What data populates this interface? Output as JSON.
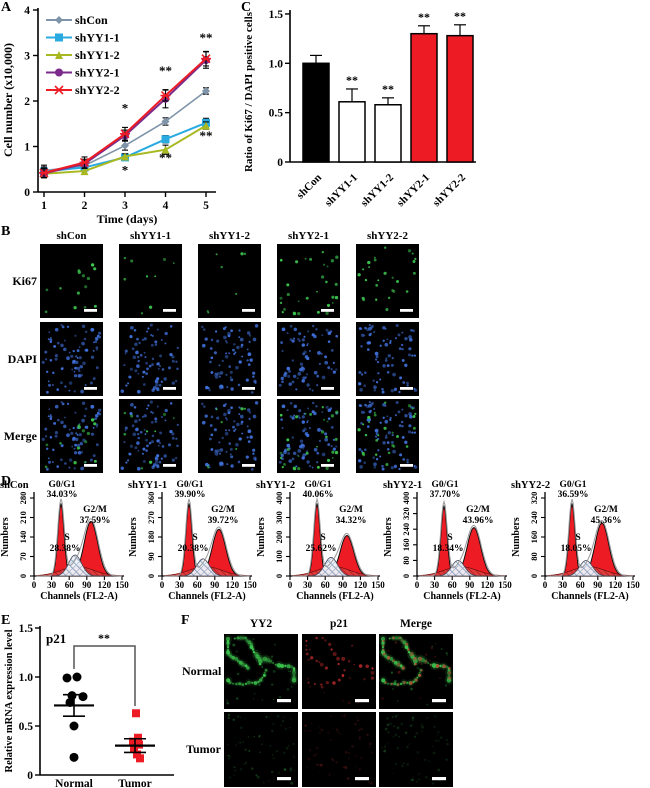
{
  "panels": {
    "a": {
      "letter": "A"
    },
    "b": {
      "letter": "B"
    },
    "c": {
      "letter": "C"
    },
    "d": {
      "letter": "D"
    },
    "e": {
      "letter": "E"
    },
    "f": {
      "letter": "F"
    }
  },
  "chart_data": [
    {
      "id": "A",
      "type": "line",
      "xlabel": "Time (days)",
      "ylabel": "Cell number (x10,000)",
      "x": [
        1,
        2,
        3,
        4,
        5
      ],
      "ylim": [
        0,
        4
      ],
      "yticks": [
        0,
        1,
        2,
        3,
        4
      ],
      "legend_position": "top-left",
      "series": [
        {
          "name": "shCon",
          "color": "#7f94a8",
          "marker": "diamond",
          "values": [
            0.47,
            0.58,
            1.02,
            1.55,
            2.22
          ],
          "errors": [
            0.12,
            0.1,
            0.1,
            0.08,
            0.07
          ]
        },
        {
          "name": "shYY1-1",
          "color": "#29abe2",
          "marker": "square",
          "values": [
            0.45,
            0.54,
            0.76,
            1.16,
            1.52
          ],
          "errors": [
            0.1,
            0.08,
            0.06,
            0.08,
            0.1
          ]
        },
        {
          "name": "shYY1-2",
          "color": "#a8b820",
          "marker": "triangle",
          "values": [
            0.4,
            0.46,
            0.78,
            0.93,
            1.46
          ],
          "errors": [
            0.08,
            0.06,
            0.06,
            0.1,
            0.08
          ]
        },
        {
          "name": "shYY2-1",
          "color": "#7b2a8b",
          "marker": "circle",
          "values": [
            0.41,
            0.62,
            1.24,
            2.05,
            2.9
          ],
          "errors": [
            0.1,
            0.1,
            0.12,
            0.2,
            0.18
          ]
        },
        {
          "name": "shYY2-2",
          "color": "#ed1c24",
          "marker": "asterisk",
          "values": [
            0.42,
            0.65,
            1.28,
            2.12,
            2.93
          ],
          "errors": [
            0.1,
            0.12,
            0.14,
            0.12,
            0.16
          ]
        }
      ],
      "significance": [
        {
          "x": 3,
          "y": 1.75,
          "text": "*"
        },
        {
          "x": 4,
          "y": 2.57,
          "text": "**"
        },
        {
          "x": 5,
          "y": 3.3,
          "text": "**"
        },
        {
          "x": 3,
          "y": 0.38,
          "text": "*"
        },
        {
          "x": 4,
          "y": 0.66,
          "text": "**"
        },
        {
          "x": 5,
          "y": 1.14,
          "text": "**"
        }
      ]
    },
    {
      "id": "C",
      "type": "bar",
      "ylabel": "Ratio of Ki67 / DAPI positive cells",
      "ylim": [
        0,
        1.5
      ],
      "ytick_labels": [
        "0",
        "0.5",
        "1.0",
        "1.5"
      ],
      "yticks": [
        0,
        0.5,
        1.0,
        1.5
      ],
      "categories": [
        "shCon",
        "shYY1-1",
        "shYY1-2",
        "shYY2-1",
        "shYY2-2"
      ],
      "values": [
        1.0,
        0.61,
        0.58,
        1.3,
        1.28
      ],
      "errors": [
        0.08,
        0.13,
        0.07,
        0.08,
        0.11
      ],
      "bar_colors": [
        "#000000",
        "#ffffff",
        "#ffffff",
        "#ed1c24",
        "#ed1c24"
      ],
      "significance": [
        "",
        "**",
        "**",
        "**",
        "**"
      ]
    },
    {
      "id": "D",
      "type": "flow-histograms",
      "xlabel": "Channels (FL2-A)",
      "ylabel": "Numbers",
      "xticks": [
        0,
        30,
        60,
        90,
        120,
        150
      ],
      "phase_labels": {
        "g0g1": "G0/G1",
        "g2m": "G2/M",
        "s": "S"
      },
      "fill_color": "#ed1c24",
      "panels": [
        {
          "name": "shCon",
          "g0g1_pct": "34.03%",
          "g2m_pct": "37.59%",
          "s_pct": "28.38%",
          "yticks": [
            0,
            70,
            140,
            210,
            280
          ],
          "peak1": 0.93,
          "peak2": 0.7,
          "s_height": 0.27
        },
        {
          "name": "shYY1-1",
          "g0g1_pct": "39.90%",
          "g2m_pct": "39.72%",
          "s_pct": "20.38%",
          "yticks": [
            0,
            90,
            180,
            270,
            360
          ],
          "peak1": 0.93,
          "peak2": 0.6,
          "s_height": 0.22
        },
        {
          "name": "shYY1-2",
          "g0g1_pct": "40.06%",
          "g2m_pct": "34.32%",
          "s_pct": "25.62%",
          "yticks": [
            0,
            100,
            200,
            300,
            400
          ],
          "peak1": 0.93,
          "peak2": 0.52,
          "s_height": 0.24
        },
        {
          "name": "shYY2-1",
          "g0g1_pct": "37.70%",
          "g2m_pct": "43.96%",
          "s_pct": "18.34%",
          "yticks": [
            0,
            80,
            160,
            240,
            320,
            400
          ],
          "peak1": 0.9,
          "peak2": 0.62,
          "s_height": 0.2
        },
        {
          "name": "shYY2-2",
          "g0g1_pct": "36.59%",
          "g2m_pct": "45.36%",
          "s_pct": "18.05%",
          "yticks": [
            0,
            80,
            160,
            240,
            320
          ],
          "peak1": 0.93,
          "peak2": 0.68,
          "s_height": 0.2
        }
      ]
    },
    {
      "id": "E",
      "type": "scatter",
      "title": "p21",
      "ylabel": "Relative mRNA expression level",
      "ylim": [
        0,
        1.5
      ],
      "ytick_labels": [
        "0",
        "0.5",
        "1.0",
        "1.5"
      ],
      "yticks": [
        0,
        0.5,
        1.0,
        1.5
      ],
      "significance": "**",
      "groups": [
        {
          "name": "Normal",
          "marker": "circle",
          "color": "#000000",
          "values": [
            0.99,
            1.0,
            0.81,
            0.8,
            0.74,
            0.5,
            0.18
          ],
          "mean": 0.71,
          "sem": 0.11
        },
        {
          "name": "Tumor",
          "marker": "square",
          "color": "#ed1c24",
          "values": [
            0.63,
            0.38,
            0.34,
            0.31,
            0.27,
            0.21,
            0.17
          ],
          "mean": 0.3,
          "sem": 0.07
        }
      ]
    }
  ],
  "panel_b": {
    "columns": [
      "shCon",
      "shYY1-1",
      "shYY1-2",
      "shYY2-1",
      "shYY2-2"
    ],
    "rows": [
      "Ki67",
      "DAPI",
      "Merge"
    ],
    "ki67_dot_counts": [
      14,
      9,
      7,
      30,
      26
    ],
    "dapi_dot_count": 80,
    "ki67_color": "#3ecb50",
    "dapi_color": "#3f6fd8",
    "scale_bar_color": "#ffffff"
  },
  "panel_f": {
    "columns": [
      "YY2",
      "p21",
      "Merge"
    ],
    "rows": [
      "Normal",
      "Tumor"
    ],
    "yy2_color": "#3ecb50",
    "p21_color": "#d43030",
    "scale_bar_color": "#ffffff"
  }
}
